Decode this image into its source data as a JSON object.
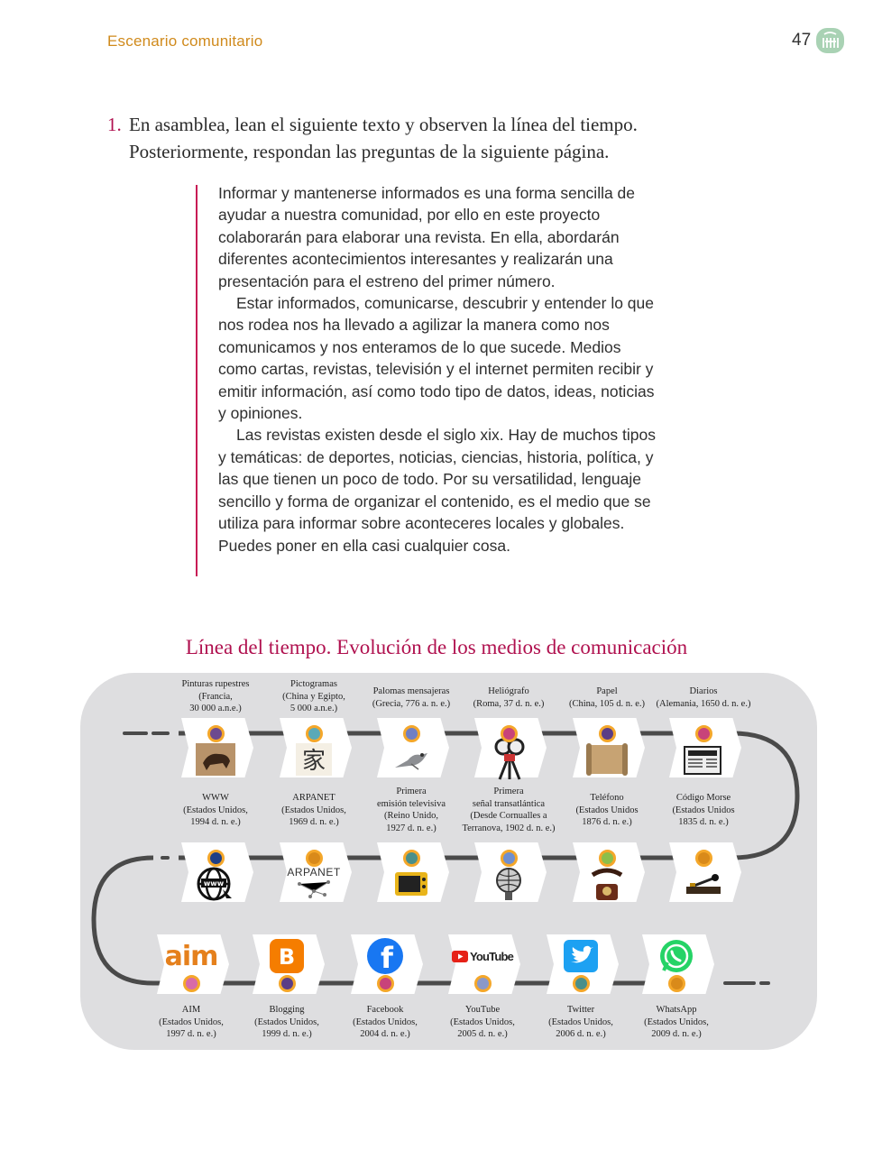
{
  "header": {
    "section": "Escenario comunitario",
    "page_number": "47"
  },
  "instruction": {
    "number": "1.",
    "text": "En asamblea, lean el siguiente texto y observen la línea del tiempo. Posteriormente, respondan las preguntas de la siguiente página."
  },
  "reading": {
    "p1": "Informar y mantenerse informados es una forma sencilla de ayudar a nuestra comunidad, por ello en este proyecto colaborarán para elaborar una revista. En ella, abordarán diferentes acontecimientos interesantes y realizarán una presentación para el estreno del primer número.",
    "p2": "Estar informados, comunicarse, descubrir y entender lo que nos rodea nos ha llevado a agilizar la manera como nos comunicamos y nos enteramos de lo que sucede. Medios como cartas, revistas, televisión y el internet permiten recibir y emitir información, así como todo tipo de datos, ideas, noticias y opiniones.",
    "p3": "Las revistas existen desde el siglo xix. Hay de muchos tipos y temáticas: de deportes, noticias, ciencias, historia, política, y las que tienen un poco de todo. Por su versatilidad, lenguaje sencillo y forma de organizar el contenido, es el medio que se utiliza para informar sobre aconteceres locales y globales. Puedes poner en ella casi cualquier cosa."
  },
  "timeline": {
    "title": "Línea del tiempo. Evolución de los medios de comunicación",
    "row1": [
      {
        "name": "Pinturas rupestres",
        "l2": "(Francia,",
        "l3": "30 000 a.n.e.)",
        "icon": "cave-painting-icon",
        "dot": "#6d4a8f"
      },
      {
        "name": "Pictogramas",
        "l2": "(China y Egipto,",
        "l3": "5 000 a.n.e.)",
        "icon": "pictogram-icon",
        "dot": "#5aa9b8"
      },
      {
        "name": "Palomas mensajeras",
        "l2": "(Grecia, 776 a. n. e.)",
        "l3": "",
        "icon": "pigeon-icon",
        "dot": "#6f7fc4"
      },
      {
        "name": "Heliógrafo",
        "l2": "(Roma, 37 d. n. e.)",
        "l3": "",
        "icon": "heliograph-icon",
        "dot": "#c8437a"
      },
      {
        "name": "Papel",
        "l2": "(China, 105 d. n. e.)",
        "l3": "",
        "icon": "scroll-icon",
        "dot": "#5b3d86"
      },
      {
        "name": "Diarios",
        "l2": "(Alemania, 1650 d. n. e.)",
        "l3": "",
        "icon": "newspaper-icon",
        "dot": "#c8437a"
      }
    ],
    "row2": [
      {
        "name": "WWW",
        "l2": "(Estados Unidos,",
        "l3": "1994 d. n. e.)",
        "l4": "",
        "icon": "www-icon",
        "dot": "#1f3f86"
      },
      {
        "name": "ARPANET",
        "l2": "(Estados Unidos,",
        "l3": "1969 d. n. e.)",
        "l4": "",
        "icon": "arpanet-icon",
        "icon_text": "ARPANET",
        "dot": "#d98a1a"
      },
      {
        "name": "Primera",
        "l2": "emisión televisiva",
        "l3": "(Reino Unido,",
        "l4": "1927 d. n. e.)",
        "icon": "television-icon",
        "dot": "#4a8f8a"
      },
      {
        "name": "Primera",
        "l2": "señal transatlántica",
        "l3": "(Desde Cornualles a",
        "l4": "Terranova, 1902 d. n. e.)",
        "icon": "globe-tower-icon",
        "dot": "#6f8fd0"
      },
      {
        "name": "Teléfono",
        "l2": "(Estados Unidos",
        "l3": "1876 d. n. e.)",
        "l4": "",
        "icon": "telephone-icon",
        "dot": "#8cbf4a"
      },
      {
        "name": "Código Morse",
        "l2": "(Estados Unidos",
        "l3": "1835 d. n. e.)",
        "l4": "",
        "icon": "telegraph-key-icon",
        "dot": "#d98a1a"
      }
    ],
    "row3": [
      {
        "name": "AIM",
        "l2": "(Estados Unidos,",
        "l3": "1997 d. n. e.)",
        "icon": "aim-icon",
        "icon_text": "aim",
        "dot": "#d86aa8"
      },
      {
        "name": "Blogging",
        "l2": "(Estados Unidos,",
        "l3": "1999 d. n. e.)",
        "icon": "blogger-icon",
        "icon_text": "B",
        "dot": "#5b3d86"
      },
      {
        "name": "Facebook",
        "l2": "(Estados Unidos,",
        "l3": "2004 d. n. e.)",
        "icon": "facebook-icon",
        "icon_text": "f",
        "dot": "#c8437a"
      },
      {
        "name": "YouTube",
        "l2": "(Estados Unidos,",
        "l3": "2005 d. n. e.)",
        "icon": "youtube-icon",
        "icon_text": "YouTube",
        "dot": "#8a98c8"
      },
      {
        "name": "Twitter",
        "l2": "(Estados Unidos,",
        "l3": "2006 d. n. e.)",
        "icon": "twitter-icon",
        "dot": "#4a8f8a"
      },
      {
        "name": "WhatsApp",
        "l2": "(Estados Unidos,",
        "l3": "2009 d. n. e.)",
        "icon": "whatsapp-icon",
        "dot": "#d98a1a"
      }
    ]
  }
}
